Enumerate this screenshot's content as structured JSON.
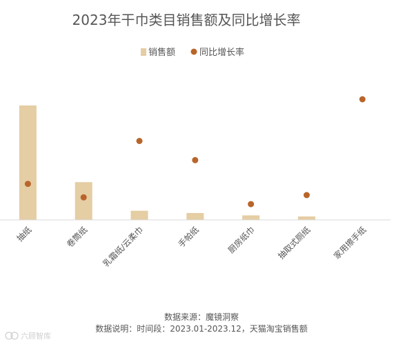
{
  "chart_data": {
    "type": "bar",
    "title": "2023年干巾类目销售额及同比增长率",
    "categories": [
      "抽纸",
      "卷筒纸",
      "乳霜纸/云柔巾",
      "手帕纸",
      "厨房纸巾",
      "抽取式厕纸",
      "家用擦手纸"
    ],
    "series": [
      {
        "name": "销售额",
        "kind": "bar",
        "values": [
          100,
          33,
          8,
          6,
          4,
          3,
          0
        ],
        "color": "#e5cda4"
      },
      {
        "name": "同比增长率",
        "kind": "dot",
        "values": [
          32,
          20,
          70,
          53,
          14,
          22,
          107
        ],
        "color": "#b8652b"
      }
    ],
    "grid": false,
    "legend_position": "top-center",
    "source_line": "数据来源：魔镜洞察",
    "note_line": "数据说明：时间段：2023.01-2023.12，天猫淘宝销售额"
  },
  "watermark": "六顾智库",
  "colors": {
    "axis": "#d9d9d9",
    "text": "#555555"
  }
}
